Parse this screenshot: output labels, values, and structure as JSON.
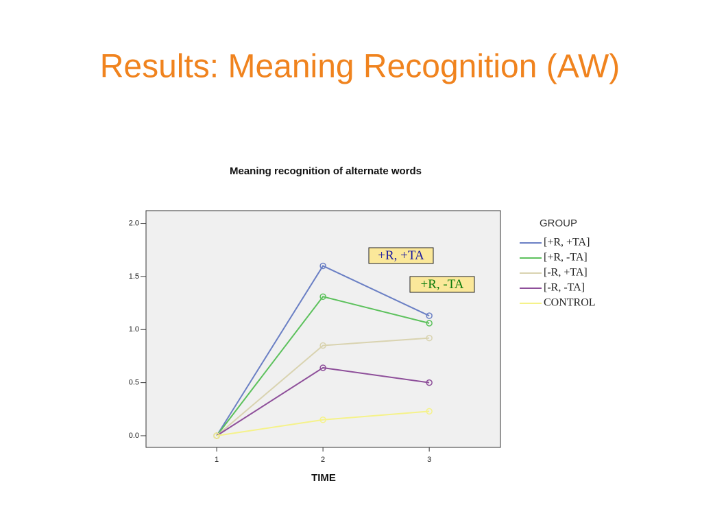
{
  "slide_title": "Results: Meaning Recognition (AW)",
  "chart_data": {
    "type": "line",
    "title": "Meaning recognition of alternate words",
    "x_label": "TIME",
    "x": [
      1,
      2,
      3
    ],
    "xlim": [
      0.335,
      3.67
    ],
    "xticks": [
      1,
      2,
      3
    ],
    "ylim": [
      -0.11,
      2.12
    ],
    "yticks": [
      {
        "value": 0,
        "label": "0.0"
      },
      0.5,
      {
        "value": 1,
        "label": "1.0"
      },
      1.5,
      {
        "value": 2,
        "label": "2.0"
      }
    ],
    "legend_title": "GROUP",
    "series": [
      {
        "name": "[+R, +TA]",
        "color": "#6a7fc4",
        "values": [
          0,
          1.6,
          1.13
        ]
      },
      {
        "name": "[+R, -TA]",
        "color": "#5cc15c",
        "values": [
          0,
          1.31,
          1.06
        ]
      },
      {
        "name": "[-R, +TA]",
        "color": "#d9d3b0",
        "values": [
          0,
          0.85,
          0.92
        ]
      },
      {
        "name": "[-R, -TA]",
        "color": "#8e4f9a",
        "values": [
          0,
          0.64,
          0.5
        ]
      },
      {
        "name": "CONTROL",
        "color": "#f5f28a",
        "values": [
          0,
          0.15,
          0.23
        ]
      }
    ],
    "annotations": [
      {
        "text": "+R, +TA",
        "color": "#1a1aa0"
      },
      {
        "text": "+R, -TA",
        "color": "#0a7a0a"
      }
    ]
  }
}
